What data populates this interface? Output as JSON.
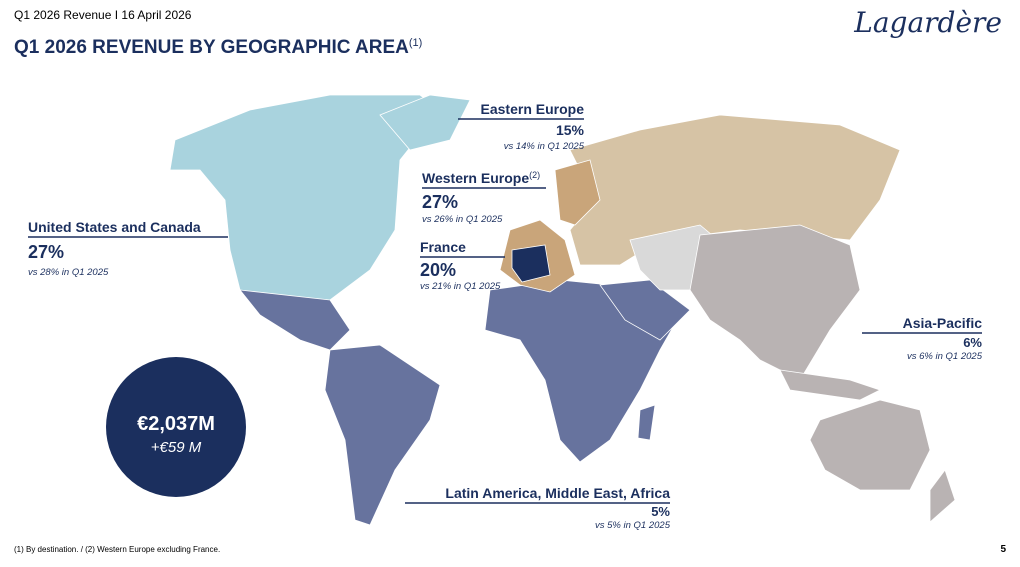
{
  "header": {
    "subtitle": "Q1 2026 Revenue I 16 April 2026",
    "title": "Q1 2026 REVENUE BY GEOGRAPHIC AREA",
    "title_note": "(1)",
    "logo": "Lagardère"
  },
  "regions": [
    {
      "name": "United States and Canada",
      "share": "27%",
      "comparison": "vs 28% in Q1 2025"
    },
    {
      "name": "Eastern Europe",
      "share": "15%",
      "comparison": "vs 14% in Q1 2025"
    },
    {
      "name": "Western Europe",
      "name_note": "(2)",
      "share": "27%",
      "comparison": "vs 26% in Q1 2025"
    },
    {
      "name": "France",
      "share": "20%",
      "comparison": "vs 21% in Q1 2025"
    },
    {
      "name": "Asia-Pacific",
      "share": "6%",
      "comparison": "vs 6% in  Q1 2025"
    },
    {
      "name": "Latin America, Middle East, Africa",
      "share": "5%",
      "comparison": "vs 5% in Q1 2025"
    }
  ],
  "total": {
    "amount": "€2,037M",
    "change": "+€59 M"
  },
  "footer": {
    "footnote": "(1) By destination. / (2) Western Europe excluding France.",
    "page": "5"
  }
}
